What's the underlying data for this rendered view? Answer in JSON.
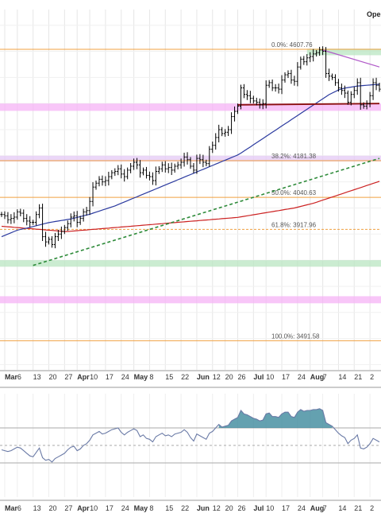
{
  "header": {
    "corner_label": "Ope"
  },
  "chart_data": {
    "type": "line",
    "subtype": "ohlc-bar",
    "title": "",
    "price_range": [
      3380,
      4760
    ],
    "fib_levels": [
      {
        "label": "0.0%: 4607.76",
        "value": 4607.76
      },
      {
        "label": "38.2%: 4181.38",
        "value": 4181.38
      },
      {
        "label": "50.0%: 4040.63",
        "value": 4040.63
      },
      {
        "label": "61.8%: 3917.96",
        "value": 3917.96
      },
      {
        "label": "100.0%: 3491.58",
        "value": 3491.58
      }
    ],
    "series": [
      {
        "name": "price",
        "kind": "ohlc",
        "values": [
          3975,
          3970,
          3955,
          3960,
          3965,
          3985,
          3980,
          3960,
          3950,
          3945,
          3945,
          3975,
          4000,
          3890,
          3870,
          3880,
          3860,
          3890,
          3900,
          3910,
          3925,
          3940,
          3965,
          3970,
          3945,
          3960,
          3985,
          3990,
          4025,
          4080,
          4095,
          4110,
          4100,
          4105,
          4120,
          4135,
          4140,
          4150,
          4130,
          4120,
          4145,
          4160,
          4175,
          4165,
          4135,
          4145,
          4125,
          4120,
          4105,
          4140,
          4150,
          4165,
          4150,
          4155,
          4145,
          4160,
          4165,
          4175,
          4195,
          4185,
          4160,
          4145,
          4190,
          4185,
          4175,
          4170,
          4225,
          4240,
          4270,
          4300,
          4285,
          4290,
          4300,
          4350,
          4370,
          4390,
          4460,
          4435,
          4430,
          4420,
          4410,
          4405,
          4395,
          4400,
          4470,
          4480,
          4460,
          4460,
          4455,
          4490,
          4510,
          4515,
          4490,
          4485,
          4540,
          4570,
          4560,
          4575,
          4580,
          4590,
          4595,
          4605,
          4600,
          4515,
          4505,
          4500,
          4480,
          4460,
          4450,
          4440,
          4405,
          4435,
          4450,
          4480,
          4395,
          4390,
          4400,
          4430,
          4480,
          4470,
          4455
        ]
      },
      {
        "name": "moving-average-blue",
        "values": [
          3890,
          3895,
          3900,
          3905,
          3910,
          3915,
          3918,
          3920,
          3923,
          3926,
          3929,
          3932,
          3935,
          3938,
          3941,
          3944,
          3946,
          3948,
          3950,
          3952,
          3954,
          3956,
          3958,
          3961,
          3964,
          3967,
          3970,
          3973,
          3976,
          3980,
          3984,
          3988,
          3992,
          3996,
          4000,
          4004,
          4008,
          4013,
          4018,
          4023,
          4028,
          4033,
          4038,
          4043,
          4048,
          4053,
          4058,
          4063,
          4068,
          4073,
          4078,
          4083,
          4088,
          4093,
          4098,
          4103,
          4108,
          4113,
          4118,
          4123,
          4128,
          4133,
          4138,
          4143,
          4148,
          4153,
          4158,
          4163,
          4168,
          4173,
          4178,
          4183,
          4188,
          4193,
          4198,
          4203,
          4210,
          4218,
          4226,
          4234,
          4242,
          4250,
          4258,
          4266,
          4274,
          4282,
          4290,
          4298,
          4306,
          4314,
          4322,
          4330,
          4338,
          4346,
          4354,
          4362,
          4370,
          4378,
          4386,
          4394,
          4402,
          4410,
          4418,
          4426,
          4434,
          4440,
          4446,
          4452,
          4456,
          4459,
          4461,
          4463,
          4465,
          4467,
          4468,
          4469,
          4470,
          4471,
          4472,
          4473,
          4474
        ]
      },
      {
        "name": "moving-average-red",
        "values": [
          3930,
          3929,
          3928,
          3927,
          3926,
          3925,
          3924,
          3923,
          3922,
          3921,
          3920,
          3919,
          3918,
          3917,
          3916,
          3915,
          3914,
          3913,
          3912,
          3911,
          3910,
          3910,
          3911,
          3912,
          3913,
          3914,
          3915,
          3916,
          3917,
          3918,
          3919,
          3920,
          3921,
          3922,
          3923,
          3924,
          3925,
          3926,
          3927,
          3928,
          3929,
          3930,
          3931,
          3932,
          3933,
          3934,
          3935,
          3936,
          3937,
          3938,
          3939,
          3940,
          3941,
          3942,
          3943,
          3944,
          3945,
          3946,
          3947,
          3948,
          3949,
          3950,
          3951,
          3952,
          3953,
          3954,
          3955,
          3956,
          3957,
          3958,
          3959,
          3960,
          3961,
          3962,
          3963,
          3964,
          3966,
          3968,
          3970,
          3972,
          3974,
          3976,
          3978,
          3980,
          3982,
          3984,
          3986,
          3988,
          3990,
          3992,
          3994,
          3996,
          3998,
          4000,
          4003,
          4006,
          4009,
          4012,
          4015,
          4018,
          4022,
          4026,
          4030,
          4034,
          4038,
          4042,
          4046,
          4050,
          4054,
          4058,
          4062,
          4066,
          4070,
          4074,
          4078,
          4082,
          4086,
          4090,
          4094,
          4098,
          4102
        ]
      },
      {
        "name": "momentum",
        "panel": "lower",
        "values": [
          0.45,
          0.44,
          0.43,
          0.44,
          0.46,
          0.48,
          0.47,
          0.44,
          0.41,
          0.38,
          0.37,
          0.42,
          0.47,
          0.36,
          0.33,
          0.34,
          0.31,
          0.35,
          0.37,
          0.39,
          0.41,
          0.45,
          0.48,
          0.49,
          0.44,
          0.46,
          0.5,
          0.52,
          0.56,
          0.62,
          0.64,
          0.66,
          0.63,
          0.64,
          0.66,
          0.68,
          0.69,
          0.7,
          0.65,
          0.62,
          0.65,
          0.67,
          0.69,
          0.67,
          0.6,
          0.62,
          0.58,
          0.57,
          0.54,
          0.6,
          0.62,
          0.64,
          0.61,
          0.62,
          0.6,
          0.63,
          0.64,
          0.65,
          0.68,
          0.65,
          0.59,
          0.55,
          0.63,
          0.61,
          0.59,
          0.57,
          0.64,
          0.66,
          0.7,
          0.74,
          0.71,
          0.72,
          0.73,
          0.78,
          0.8,
          0.82,
          0.9,
          0.86,
          0.85,
          0.83,
          0.81,
          0.8,
          0.78,
          0.79,
          0.86,
          0.87,
          0.83,
          0.83,
          0.82,
          0.86,
          0.88,
          0.88,
          0.83,
          0.82,
          0.88,
          0.91,
          0.89,
          0.9,
          0.9,
          0.91,
          0.91,
          0.92,
          0.9,
          0.76,
          0.74,
          0.72,
          0.68,
          0.64,
          0.61,
          0.59,
          0.52,
          0.56,
          0.58,
          0.62,
          0.47,
          0.46,
          0.48,
          0.52,
          0.58,
          0.56,
          0.54
        ]
      }
    ],
    "lower_panel": {
      "range": [
        0,
        1
      ],
      "reference_levels": [
        0.3,
        0.5,
        0.7
      ]
    },
    "trendlines": [
      {
        "name": "support-trendline-green",
        "from": [
          10,
          3780
        ],
        "to": [
          120,
          4190
        ]
      },
      {
        "name": "resistance-trendline-purple",
        "from": [
          102,
          4605
        ],
        "to": [
          120,
          4540
        ]
      },
      {
        "name": "support-line-dark-red",
        "from": [
          75,
          4395
        ],
        "to": [
          120,
          4400
        ]
      }
    ],
    "zones": [
      {
        "name": "green-zone-top",
        "range": [
          4585,
          4610
        ],
        "from": 97,
        "color": "#b9e5c2"
      },
      {
        "name": "magenta-zone-1",
        "range": [
          4372,
          4400
        ],
        "color": "#f6b3f6"
      },
      {
        "name": "lavender-zone",
        "range": [
          4178,
          4200
        ],
        "color": "#e4c9f5"
      },
      {
        "name": "green-zone-bottom",
        "range": [
          3775,
          3800
        ],
        "color": "#b9e5c2"
      },
      {
        "name": "magenta-zone-2",
        "range": [
          3635,
          3662
        ],
        "color": "#f6b3f6"
      }
    ],
    "x_labels": [
      {
        "label": "Mar",
        "bar": 1,
        "month": true
      },
      {
        "label": "6",
        "bar": 5
      },
      {
        "label": "13",
        "bar": 10
      },
      {
        "label": "20",
        "bar": 15
      },
      {
        "label": "27",
        "bar": 20
      },
      {
        "label": "Apr",
        "bar": 24,
        "month": true
      },
      {
        "label": "10",
        "bar": 28
      },
      {
        "label": "17",
        "bar": 33
      },
      {
        "label": "24",
        "bar": 38
      },
      {
        "label": "May",
        "bar": 42,
        "month": true
      },
      {
        "label": "8",
        "bar": 47
      },
      {
        "label": "15",
        "bar": 52
      },
      {
        "label": "22",
        "bar": 57
      },
      {
        "label": "Jun",
        "bar": 62,
        "month": true
      },
      {
        "label": "12",
        "bar": 67
      },
      {
        "label": "20",
        "bar": 71
      },
      {
        "label": "26",
        "bar": 75
      },
      {
        "label": "Jul",
        "bar": 80,
        "month": true
      },
      {
        "label": "10",
        "bar": 84
      },
      {
        "label": "17",
        "bar": 89
      },
      {
        "label": "24",
        "bar": 94
      },
      {
        "label": "Aug",
        "bar": 98,
        "month": true
      },
      {
        "label": "7",
        "bar": 102
      },
      {
        "label": "14",
        "bar": 107
      },
      {
        "label": "21",
        "bar": 112
      },
      {
        "label": "2",
        "bar": 117
      }
    ],
    "colors": {
      "price": "#000000",
      "ma_blue": "#2b3a9f",
      "ma_red": "#cc2222",
      "trend_green": "#2e8b3a",
      "trend_purple": "#b15ac9",
      "support_red": "#8b1010",
      "fib": "#f0a040",
      "momentum": "#6a7aa6",
      "momentum_fill": "#3d8a9c"
    },
    "grid": true
  }
}
